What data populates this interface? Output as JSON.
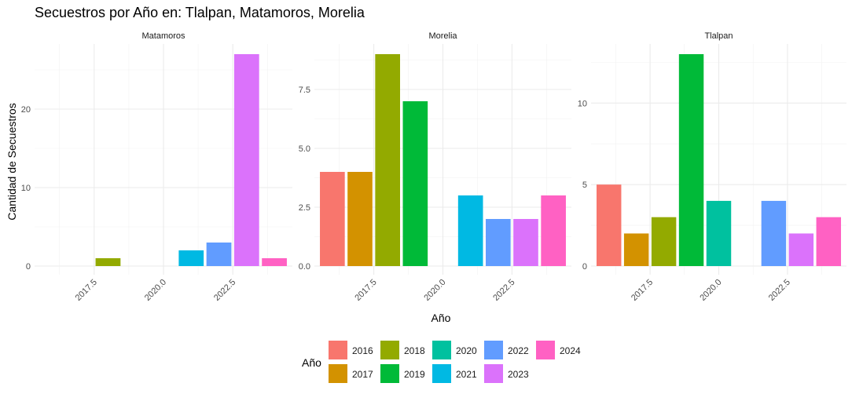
{
  "chart_data": {
    "type": "bar",
    "title": "Secuestros por Año en: Tlalpan, Matamoros, Morelia",
    "xlabel": "Año",
    "ylabel": "Cantidad de Secuestros",
    "legend_title": "Año",
    "legend_position": "bottom",
    "grid": true,
    "x_ticks": [
      2017.5,
      2020.0,
      2022.5
    ],
    "x_tick_labels": [
      "2017.5",
      "2020.0",
      "2022.5"
    ],
    "years": [
      2016,
      2017,
      2018,
      2019,
      2020,
      2021,
      2022,
      2023,
      2024
    ],
    "colors": {
      "2016": "#F8766D",
      "2017": "#D39200",
      "2018": "#93AA00",
      "2019": "#00BA38",
      "2020": "#00C19F",
      "2021": "#00B9E3",
      "2022": "#619CFF",
      "2023": "#DB72FB",
      "2024": "#FF61C3"
    },
    "facets": [
      {
        "name": "Matamoros",
        "ylim": [
          0,
          27
        ],
        "y_ticks": [
          0,
          10,
          20
        ],
        "y_tick_labels": [
          "0",
          "10",
          "20"
        ],
        "bars": [
          {
            "year": 2018,
            "value": 1
          },
          {
            "year": 2021,
            "value": 2
          },
          {
            "year": 2022,
            "value": 3
          },
          {
            "year": 2023,
            "value": 27
          },
          {
            "year": 2024,
            "value": 1
          }
        ]
      },
      {
        "name": "Morelia",
        "ylim": [
          0,
          9
        ],
        "y_ticks": [
          0,
          2.5,
          5,
          7.5
        ],
        "y_tick_labels": [
          "0.0",
          "2.5",
          "5.0",
          "7.5"
        ],
        "bars": [
          {
            "year": 2016,
            "value": 4
          },
          {
            "year": 2017,
            "value": 4
          },
          {
            "year": 2018,
            "value": 9
          },
          {
            "year": 2019,
            "value": 7
          },
          {
            "year": 2021,
            "value": 3
          },
          {
            "year": 2022,
            "value": 2
          },
          {
            "year": 2023,
            "value": 2
          },
          {
            "year": 2024,
            "value": 3
          }
        ]
      },
      {
        "name": "Tlalpan",
        "ylim": [
          0,
          13
        ],
        "y_ticks": [
          0,
          5,
          10
        ],
        "y_tick_labels": [
          "0",
          "5",
          "10"
        ],
        "bars": [
          {
            "year": 2016,
            "value": 5
          },
          {
            "year": 2017,
            "value": 2
          },
          {
            "year": 2018,
            "value": 3
          },
          {
            "year": 2019,
            "value": 13
          },
          {
            "year": 2020,
            "value": 4
          },
          {
            "year": 2022,
            "value": 4
          },
          {
            "year": 2023,
            "value": 2
          },
          {
            "year": 2024,
            "value": 3
          }
        ]
      }
    ]
  }
}
